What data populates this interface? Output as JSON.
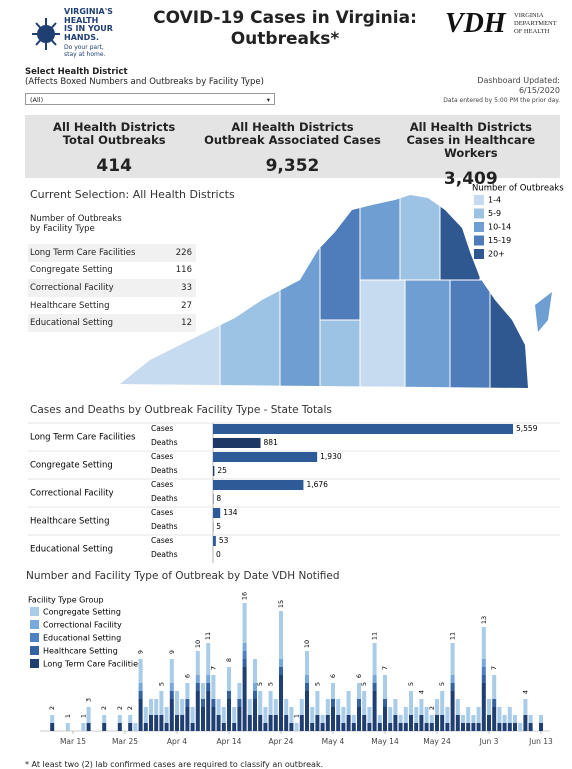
{
  "header": {
    "logo_lines": [
      "VIRGINIA'S",
      "HEALTH",
      "IS IN YOUR",
      "HANDS."
    ],
    "logo_tagline": "Do your part, stay at home.",
    "title": "COVID-19 Cases in Virginia: Outbreaks*",
    "agency_short": "VDH",
    "agency_long": "VIRGINIA DEPARTMENT OF HEALTH"
  },
  "filter": {
    "label": "Select Health District",
    "note": "(Affects Boxed Numbers and Outbreaks by Facility Type)",
    "selected": "(All)"
  },
  "updated": {
    "label": "Dashboard Updated:",
    "date": "6/15/2020",
    "note": "Data entered by 5:00 PM the prior day."
  },
  "kpis": [
    {
      "label_lines": [
        "All Health Districts",
        "Total Outbreaks"
      ],
      "value": "414"
    },
    {
      "label_lines": [
        "All Health Districts",
        "Outbreak Associated Cases"
      ],
      "value": "9,352"
    },
    {
      "label_lines": [
        "All Health Districts",
        "Cases in Healthcare Workers"
      ],
      "value": "3,409"
    }
  ],
  "selection": {
    "title": "Current Selection: All Health Districts",
    "table_title_lines": [
      "Number of Outbreaks",
      "by Facility Type"
    ],
    "rows": [
      [
        "Long Term Care Facilities",
        226
      ],
      [
        "Congregate Setting",
        116
      ],
      [
        "Correctional Facility",
        33
      ],
      [
        "Healthcare Setting",
        27
      ],
      [
        "Educational Setting",
        12
      ]
    ]
  },
  "map_legend": {
    "title": "Number of Outbreaks",
    "items": [
      {
        "label": "1-4",
        "color": "#c6dbef"
      },
      {
        "label": "5-9",
        "color": "#9cc3e4"
      },
      {
        "label": "10-14",
        "color": "#6f9fd2"
      },
      {
        "label": "15-19",
        "color": "#4f7dbb"
      },
      {
        "label": "20+",
        "color": "#2f5890"
      }
    ]
  },
  "chart_data": [
    {
      "type": "hbar",
      "title": "Cases and Deaths by Outbreak Facility Type - State Totals",
      "categories": [
        "Long Term Care Facilities",
        "Congregate Setting",
        "Correctional Facility",
        "Healthcare Setting",
        "Educational Setting"
      ],
      "series": [
        {
          "name": "Cases",
          "color": "#2f5a98",
          "values": [
            5559,
            1930,
            1676,
            134,
            53
          ],
          "value_labels": [
            "5,559",
            "1,930",
            "1,676",
            "134",
            "53"
          ]
        },
        {
          "name": "Deaths",
          "color": "#1e3764",
          "values": [
            881,
            25,
            8,
            5,
            0
          ],
          "value_labels": [
            "881",
            "25",
            "8",
            "5",
            "0"
          ]
        }
      ]
    },
    {
      "type": "stacked-bar",
      "title": "Number and Facility Type of Outbreak by Date VDH Notified",
      "legend_title": "Facility Type Group",
      "categories": [
        null,
        null,
        null,
        null,
        null,
        null,
        "Mar 15",
        null,
        null,
        null,
        null,
        null,
        null,
        null,
        null,
        null,
        "Mar 25",
        null,
        null,
        null,
        null,
        null,
        null,
        null,
        null,
        null,
        "Apr 4",
        null,
        null,
        null,
        null,
        null,
        null,
        null,
        null,
        null,
        "Apr 14",
        null,
        null,
        null,
        null,
        null,
        null,
        null,
        null,
        null,
        "Apr 24",
        null,
        null,
        null,
        null,
        null,
        null,
        null,
        null,
        null,
        "May 4",
        null,
        null,
        null,
        null,
        null,
        null,
        null,
        null,
        null,
        "May 14",
        null,
        null,
        null,
        null,
        null,
        null,
        null,
        null,
        null,
        "May 24",
        null,
        null,
        null,
        null,
        null,
        null,
        null,
        null,
        null,
        "Jun 3",
        null,
        null,
        null,
        null,
        null,
        null,
        null,
        null,
        null,
        "Jun 13"
      ],
      "series": [
        {
          "name": "Congregate Setting",
          "color": "#a9cce8",
          "values": [
            0,
            0,
            1,
            0,
            0,
            1,
            0,
            0,
            1,
            2,
            0,
            0,
            1,
            0,
            0,
            1,
            0,
            1,
            1,
            3,
            2,
            2,
            2,
            3,
            2,
            3,
            3,
            2,
            2,
            2,
            3,
            2,
            4,
            3,
            2,
            2,
            3,
            2,
            2,
            5,
            2,
            3,
            3,
            2,
            3,
            2,
            6,
            2,
            2,
            1,
            2,
            3,
            2,
            3,
            1,
            2,
            2,
            2,
            2,
            3,
            1,
            2,
            3,
            2,
            4,
            1,
            3,
            2,
            2,
            1,
            2,
            3,
            2,
            2,
            2,
            1,
            2,
            3,
            2,
            4,
            2,
            1,
            2,
            1,
            2,
            4,
            2,
            3,
            2,
            1,
            2,
            1,
            1,
            2,
            1,
            0,
            1
          ]
        },
        {
          "name": "Correctional Facility",
          "color": "#78a9dc",
          "values": [
            0,
            0,
            0,
            0,
            0,
            0,
            0,
            0,
            0,
            0,
            0,
            0,
            0,
            0,
            0,
            0,
            0,
            0,
            0,
            1,
            0,
            0,
            0,
            0,
            0,
            1,
            0,
            0,
            0,
            0,
            1,
            0,
            1,
            0,
            0,
            0,
            0,
            0,
            0,
            1,
            0,
            1,
            0,
            0,
            0,
            0,
            1,
            0,
            0,
            0,
            0,
            1,
            0,
            0,
            0,
            0,
            0,
            0,
            0,
            0,
            0,
            0,
            0,
            0,
            1,
            0,
            0,
            0,
            0,
            0,
            0,
            0,
            0,
            0,
            0,
            0,
            0,
            0,
            0,
            1,
            0,
            0,
            0,
            0,
            0,
            1,
            0,
            0,
            0,
            0,
            0,
            0,
            0,
            0,
            0,
            0,
            0
          ]
        },
        {
          "name": "Educational Setting",
          "color": "#4f82c2",
          "values": [
            0,
            0,
            0,
            0,
            0,
            0,
            0,
            0,
            0,
            0,
            0,
            0,
            0,
            0,
            0,
            0,
            0,
            0,
            0,
            0,
            0,
            0,
            0,
            0,
            0,
            0,
            0,
            0,
            0,
            0,
            0,
            0,
            0,
            0,
            0,
            0,
            0,
            0,
            0,
            1,
            0,
            0,
            0,
            0,
            0,
            0,
            0,
            0,
            0,
            0,
            0,
            0,
            0,
            0,
            0,
            0,
            0,
            0,
            0,
            0,
            0,
            0,
            0,
            0,
            0,
            0,
            0,
            0,
            0,
            0,
            0,
            0,
            0,
            0,
            0,
            0,
            0,
            0,
            0,
            0,
            0,
            0,
            0,
            0,
            0,
            1,
            0,
            0,
            0,
            0,
            0,
            0,
            0,
            0,
            0,
            0,
            0
          ]
        },
        {
          "name": "Healthcare Setting",
          "color": "#3562a0",
          "values": [
            0,
            0,
            0,
            0,
            0,
            0,
            0,
            0,
            0,
            0,
            0,
            0,
            0,
            0,
            0,
            0,
            0,
            0,
            0,
            1,
            0,
            0,
            0,
            0,
            0,
            1,
            0,
            0,
            1,
            0,
            1,
            1,
            1,
            1,
            0,
            0,
            1,
            0,
            1,
            1,
            0,
            1,
            0,
            0,
            0,
            0,
            1,
            0,
            0,
            0,
            0,
            1,
            0,
            0,
            0,
            0,
            1,
            0,
            0,
            0,
            0,
            1,
            0,
            0,
            1,
            0,
            1,
            0,
            0,
            0,
            0,
            0,
            0,
            0,
            0,
            0,
            0,
            0,
            0,
            1,
            0,
            0,
            0,
            0,
            0,
            1,
            0,
            1,
            0,
            0,
            0,
            0,
            0,
            0,
            0,
            0,
            0
          ]
        },
        {
          "name": "Long Term Care Facilities",
          "color": "#1f3e72",
          "values": [
            0,
            0,
            1,
            0,
            0,
            0,
            0,
            0,
            0,
            1,
            0,
            0,
            1,
            0,
            0,
            1,
            0,
            1,
            0,
            4,
            1,
            2,
            2,
            2,
            1,
            4,
            2,
            2,
            3,
            1,
            5,
            3,
            5,
            3,
            2,
            1,
            4,
            1,
            3,
            8,
            2,
            4,
            2,
            1,
            2,
            2,
            7,
            2,
            1,
            0,
            2,
            5,
            1,
            2,
            1,
            2,
            3,
            2,
            1,
            2,
            1,
            3,
            2,
            1,
            5,
            1,
            3,
            1,
            2,
            1,
            1,
            2,
            1,
            2,
            1,
            1,
            2,
            2,
            1,
            5,
            2,
            1,
            1,
            1,
            1,
            6,
            2,
            3,
            1,
            1,
            1,
            1,
            0,
            2,
            1,
            0,
            1
          ]
        }
      ],
      "total_labels": [
        null,
        null,
        2,
        null,
        null,
        1,
        null,
        null,
        1,
        3,
        null,
        null,
        2,
        null,
        null,
        2,
        null,
        2,
        null,
        9,
        null,
        null,
        null,
        5,
        null,
        9,
        null,
        null,
        6,
        null,
        10,
        null,
        11,
        7,
        null,
        null,
        8,
        null,
        null,
        16,
        null,
        null,
        5,
        null,
        5,
        null,
        15,
        null,
        null,
        1,
        null,
        10,
        null,
        5,
        null,
        null,
        6,
        null,
        null,
        null,
        null,
        6,
        5,
        null,
        11,
        null,
        7,
        null,
        null,
        null,
        null,
        5,
        null,
        4,
        null,
        2,
        null,
        5,
        null,
        11,
        null,
        null,
        null,
        null,
        null,
        13,
        null,
        7,
        null,
        null,
        null,
        null,
        null,
        4,
        null,
        null,
        null
      ]
    }
  ],
  "footnote": "* At least two (2) lab confirmed cases are required to classify an outbreak."
}
